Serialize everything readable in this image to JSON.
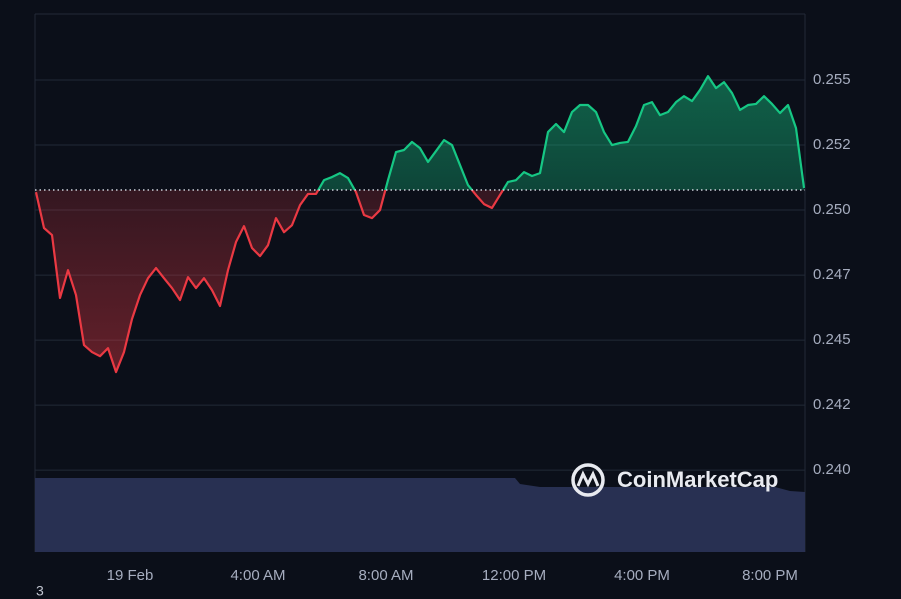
{
  "chart_data": {
    "type": "line",
    "x": [
      -2.9375,
      -2.6875,
      -2.4375,
      -2.1875,
      -1.9375,
      -1.6875,
      -1.4375,
      -1.1875,
      -0.9375,
      -0.6875,
      -0.4375,
      -0.1875,
      0.0625,
      0.3125,
      0.5625,
      0.8125,
      1.0625,
      1.3125,
      1.5625,
      1.8125,
      2.0625,
      2.3125,
      2.5625,
      2.8125,
      3.0625,
      3.3125,
      3.5625,
      3.8125,
      4.0625,
      4.3125,
      4.5625,
      4.8125,
      5.0625,
      5.3125,
      5.5625,
      5.8125,
      6.0625,
      6.3125,
      6.5625,
      6.8125,
      7.0625,
      7.3125,
      7.5625,
      7.8125,
      8.0625,
      8.3125,
      8.5625,
      8.8125,
      9.0625,
      9.3125,
      9.5625,
      9.8125,
      10.0625,
      10.3125,
      10.5625,
      10.8125,
      11.0625,
      11.3125,
      11.5625,
      11.8125,
      12.0625,
      12.3125,
      12.5625,
      12.8125,
      13.0625,
      13.3125,
      13.5625,
      13.8125,
      14.0625,
      14.3125,
      14.5625,
      14.8125,
      15.0625,
      15.3125,
      15.5625,
      15.8125,
      16.0625,
      16.3125,
      16.5625,
      16.8125,
      17.0625,
      17.3125,
      17.5625,
      17.8125,
      18.0625,
      18.3125,
      18.5625,
      18.8125,
      19.0625,
      19.3125,
      19.5625,
      19.8125,
      20.0625,
      20.3125,
      20.5625,
      20.8125,
      21.0625
    ],
    "series": [
      {
        "values": [
          0.25069,
          0.24931,
          0.24904,
          0.24662,
          0.24769,
          0.24673,
          0.24481,
          0.24454,
          0.24438,
          0.24469,
          0.24377,
          0.24454,
          0.24581,
          0.24673,
          0.24738,
          0.24777,
          0.24738,
          0.247,
          0.24654,
          0.24742,
          0.247,
          0.24738,
          0.24692,
          0.24631,
          0.24769,
          0.24877,
          0.24938,
          0.24854,
          0.24823,
          0.24865,
          0.24969,
          0.24915,
          0.24942,
          0.25019,
          0.25062,
          0.25062,
          0.25115,
          0.25127,
          0.25142,
          0.25123,
          0.25069,
          0.24981,
          0.24969,
          0.25,
          0.25115,
          0.25223,
          0.25231,
          0.25262,
          0.25238,
          0.25185,
          0.25227,
          0.25269,
          0.2525,
          0.25173,
          0.25096,
          0.25058,
          0.25023,
          0.25008,
          0.25058,
          0.25108,
          0.25115,
          0.25146,
          0.25131,
          0.25142,
          0.253,
          0.25331,
          0.253,
          0.25377,
          0.25404,
          0.25404,
          0.25377,
          0.253,
          0.2525,
          0.25258,
          0.25262,
          0.25323,
          0.25404,
          0.25415,
          0.25365,
          0.25377,
          0.25415,
          0.25438,
          0.25419,
          0.25462,
          0.25515,
          0.25469,
          0.25492,
          0.2545,
          0.25385,
          0.25404,
          0.25408,
          0.25438,
          0.25408,
          0.25373,
          0.25404,
          0.25315,
          0.25085
        ],
        "color_up": "#16c784",
        "color_down": "#ea3943"
      }
    ],
    "baseline": 0.25077,
    "xlim": [
      -2.96875,
      21.09375
    ],
    "xticks": [
      {
        "value": 0,
        "label": "19 Feb"
      },
      {
        "value": 4,
        "label": "4:00 AM"
      },
      {
        "value": 8,
        "label": "8:00 AM"
      },
      {
        "value": 12,
        "label": "12:00 PM"
      },
      {
        "value": 16,
        "label": "4:00 PM"
      },
      {
        "value": 20,
        "label": "8:00 PM"
      }
    ],
    "ylim": [
      0.23685,
      0.25754
    ],
    "yticks": [
      {
        "value": 0.24,
        "label": "0.240"
      },
      {
        "value": 0.2425,
        "label": "0.242"
      },
      {
        "value": 0.245,
        "label": "0.245"
      },
      {
        "value": 0.2475,
        "label": "0.247"
      },
      {
        "value": 0.25,
        "label": "0.250"
      },
      {
        "value": 0.2525,
        "label": "0.252"
      },
      {
        "value": 0.255,
        "label": "0.255"
      }
    ],
    "grid": true,
    "watermark": "CoinMarketCap",
    "footnote": "3"
  }
}
